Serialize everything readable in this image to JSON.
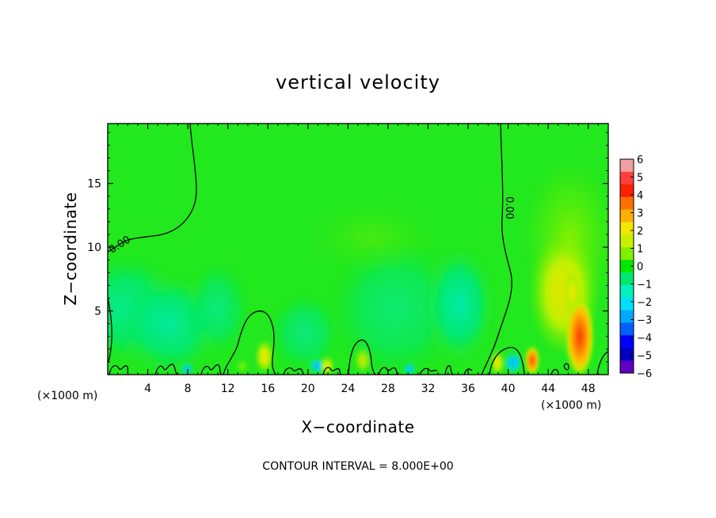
{
  "chart_data": {
    "type": "heatmap",
    "title": "vertical velocity",
    "xlabel": "X−coordinate",
    "ylabel": "Z−coordinate",
    "x_unit_left": "(×1000 m)",
    "x_unit_right": "(×1000 m)",
    "xlim": [
      0,
      50
    ],
    "ylim": [
      0,
      19.7
    ],
    "x_ticks": [
      "4",
      "8",
      "12",
      "16",
      "20",
      "24",
      "28",
      "32",
      "36",
      "40",
      "44",
      "48"
    ],
    "y_ticks": [
      "5",
      "10",
      "15"
    ],
    "contour_note": "CONTOUR INTERVAL = 8.000E+00",
    "contour_labels": [
      "0.00",
      "0.00"
    ],
    "colorbar": {
      "labels": [
        "6",
        "5",
        "4",
        "3",
        "2",
        "1",
        "0",
        "−1",
        "−2",
        "−3",
        "−4",
        "−5",
        "−6"
      ],
      "colors": [
        "#f0a0a0",
        "#ff4040",
        "#ff2000",
        "#ff7000",
        "#ffb000",
        "#f0e800",
        "#c8f000",
        "#80f000",
        "#00e800",
        "#00e870",
        "#00f0c0",
        "#00e0ff",
        "#00a8ff",
        "#0060ff",
        "#0000ff",
        "#0000c0",
        "#6000c0"
      ]
    },
    "background_value": 0,
    "features": [
      {
        "name": "updraft core",
        "x": 47,
        "z": 2.5,
        "value": 4.5
      },
      {
        "name": "updraft column",
        "x": 46.5,
        "z": 6,
        "value": 2
      },
      {
        "name": "updraft",
        "x": 42.3,
        "z": 1.2,
        "value": 4
      },
      {
        "name": "updraft",
        "x": 39.5,
        "z": 1,
        "value": 2.5
      },
      {
        "name": "weak updraft",
        "x": 15.8,
        "z": 1.2,
        "value": 2.5
      },
      {
        "name": "weak updraft",
        "x": 22,
        "z": 0.5,
        "value": 2
      },
      {
        "name": "weak updraft",
        "x": 25.5,
        "z": 1,
        "value": 1.5
      },
      {
        "name": "downdraft",
        "x": 34.5,
        "z": 5,
        "value": -1.8
      },
      {
        "name": "downdraft",
        "x": 5,
        "z": 3.5,
        "value": -1
      },
      {
        "name": "downdraft",
        "x": 20.5,
        "z": 0.4,
        "value": -2.5
      },
      {
        "name": "downdraft",
        "x": 8,
        "z": 0.3,
        "value": -2
      },
      {
        "name": "downdraft",
        "x": 30,
        "z": 0.3,
        "value": -2
      },
      {
        "name": "weak rise",
        "x": 47,
        "z": 11,
        "value": 0.8
      },
      {
        "name": "weak rise",
        "x": 31,
        "z": 10,
        "value": 0.3
      }
    ]
  }
}
